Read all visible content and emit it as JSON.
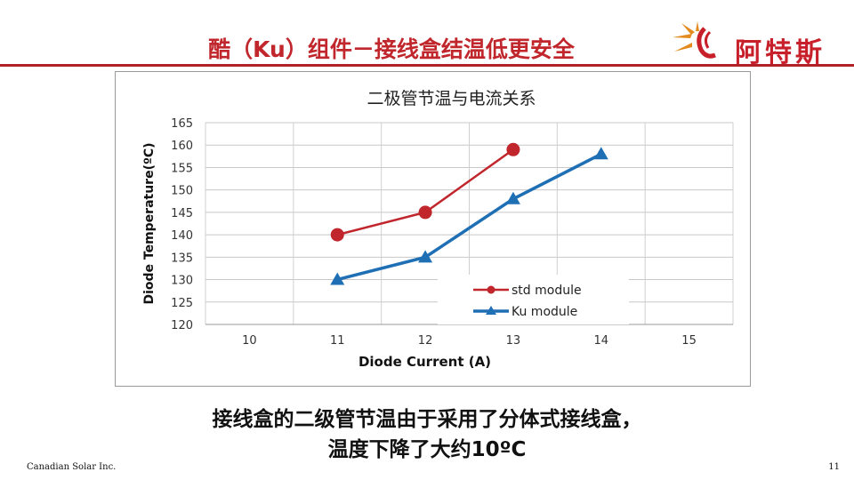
{
  "header": {
    "title": "酷（Ku）组件－接线盒结温低更安全",
    "logo_text": "阿特斯",
    "accent_color": "#c0262b"
  },
  "chart_data": {
    "type": "line",
    "title": "二极管节温与电流关系",
    "xlabel": "Diode Current (A)",
    "ylabel": "Diode Temperature(ºC)",
    "x_ticks": [
      10,
      11,
      12,
      13,
      14,
      15
    ],
    "y_ticks": [
      120,
      125,
      130,
      135,
      140,
      145,
      150,
      155,
      160,
      165
    ],
    "xlim": [
      9.5,
      15.5
    ],
    "ylim": [
      120,
      165
    ],
    "grid": true,
    "legend_position": "lower-right",
    "series": [
      {
        "name": "std module",
        "color": "#c0262b",
        "marker": "circle",
        "x": [
          11,
          12,
          13
        ],
        "y": [
          140,
          145,
          159
        ]
      },
      {
        "name": "Ku module",
        "color": "#1f6fb5",
        "marker": "triangle",
        "x": [
          11,
          12,
          13,
          14
        ],
        "y": [
          130,
          135,
          148,
          158
        ]
      }
    ]
  },
  "caption": {
    "line1": "接线盒的二级管节温由于采用了分体式接线盒，",
    "line2": "温度下降了大约10ºC"
  },
  "footer": {
    "company": "Canadian Solar Inc.",
    "page_number": "11"
  }
}
